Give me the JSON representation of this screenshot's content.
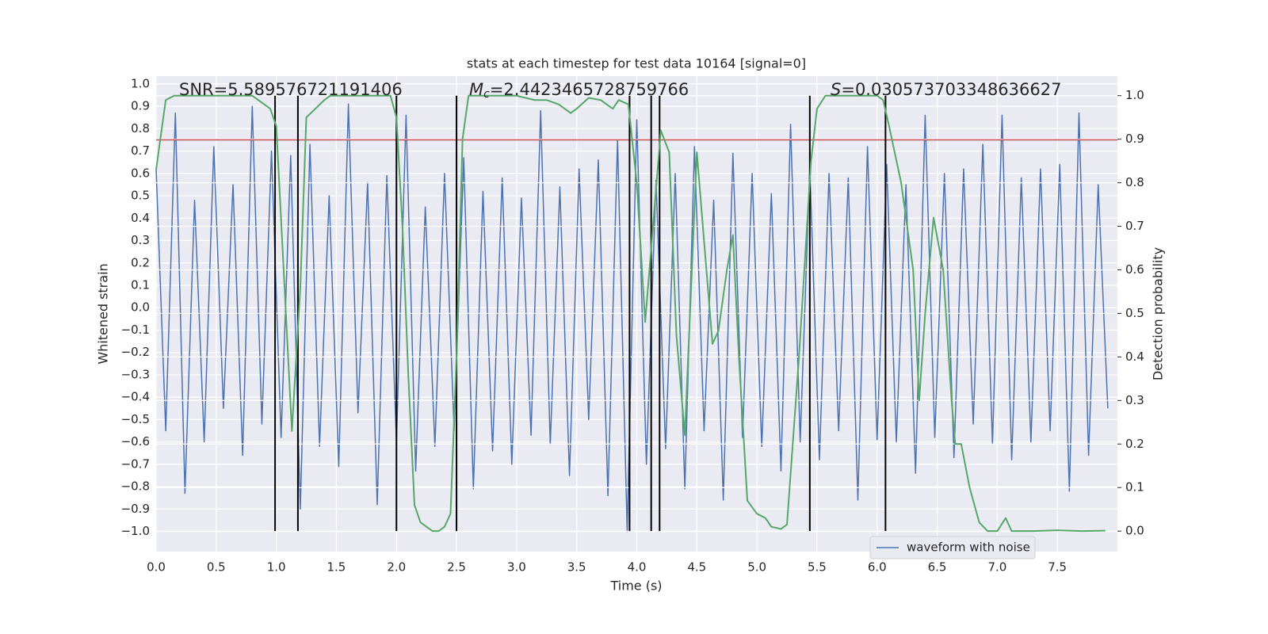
{
  "chart_data": {
    "type": "line",
    "title": "stats at each timestep for test data 10164 [signal=0]",
    "xlabel": "Time (s)",
    "ylabel": "Whitened strain",
    "y2label": "Detection probability",
    "xlim": [
      0,
      8
    ],
    "ylim": [
      -1.09,
      1.035
    ],
    "y2lim": [
      -0.047,
      1.045
    ],
    "xticks": [
      {
        "value": 0,
        "label": "0.0"
      },
      {
        "value": 0.5,
        "label": "0.5"
      },
      {
        "value": 1,
        "label": "1.0"
      },
      {
        "value": 1.5,
        "label": "1.5"
      },
      {
        "value": 2,
        "label": "2.0"
      },
      {
        "value": 2.5,
        "label": "2.5"
      },
      {
        "value": 3,
        "label": "3.0"
      },
      {
        "value": 3.5,
        "label": "3.5"
      },
      {
        "value": 4,
        "label": "4.0"
      },
      {
        "value": 4.5,
        "label": "4.5"
      },
      {
        "value": 5,
        "label": "5.0"
      },
      {
        "value": 5.5,
        "label": "5.5"
      },
      {
        "value": 6,
        "label": "6.0"
      },
      {
        "value": 6.5,
        "label": "6.5"
      },
      {
        "value": 7,
        "label": "7.0"
      },
      {
        "value": 7.5,
        "label": "7.5"
      }
    ],
    "yticks": [
      {
        "value": -1,
        "label": "−1.0"
      },
      {
        "value": -0.9,
        "label": "−0.9"
      },
      {
        "value": -0.8,
        "label": "−0.8"
      },
      {
        "value": -0.7,
        "label": "−0.7"
      },
      {
        "value": -0.6,
        "label": "−0.6"
      },
      {
        "value": -0.5,
        "label": "−0.5"
      },
      {
        "value": -0.4,
        "label": "−0.4"
      },
      {
        "value": -0.3,
        "label": "−0.3"
      },
      {
        "value": -0.2,
        "label": "−0.2"
      },
      {
        "value": -0.1,
        "label": "−0.1"
      },
      {
        "value": 0,
        "label": "0.0"
      },
      {
        "value": 0.1,
        "label": "0.1"
      },
      {
        "value": 0.2,
        "label": "0.2"
      },
      {
        "value": 0.3,
        "label": "0.3"
      },
      {
        "value": 0.4,
        "label": "0.4"
      },
      {
        "value": 0.5,
        "label": "0.5"
      },
      {
        "value": 0.6,
        "label": "0.6"
      },
      {
        "value": 0.7,
        "label": "0.7"
      },
      {
        "value": 0.8,
        "label": "0.8"
      },
      {
        "value": 0.9,
        "label": "0.9"
      },
      {
        "value": 1,
        "label": "1.0"
      }
    ],
    "y2ticks": [
      {
        "value": 0,
        "label": "0.0"
      },
      0.1,
      0.2,
      0.3,
      0.4,
      0.5,
      0.6,
      0.7,
      0.8,
      0.9,
      {
        "value": 1,
        "label": "1.0"
      }
    ],
    "grid": true,
    "legend": "lower right",
    "series": [
      {
        "name": "waveform with noise",
        "color": "#4c72b0",
        "x": [
          0,
          0.08,
          0.16,
          0.24,
          0.32,
          0.4,
          0.48,
          0.56,
          0.64,
          0.72,
          0.8,
          0.88,
          0.96,
          1.04,
          1.12,
          1.2,
          1.28,
          1.36,
          1.44,
          1.52,
          1.6,
          1.68,
          1.76,
          1.84,
          1.92,
          2,
          2.08,
          2.16,
          2.24,
          2.32,
          2.4,
          2.48,
          2.56,
          2.64,
          2.72,
          2.8,
          2.88,
          2.96,
          3.04,
          3.12,
          3.2,
          3.28,
          3.36,
          3.44,
          3.52,
          3.6,
          3.68,
          3.76,
          3.84,
          3.92,
          4,
          4.08,
          4.16,
          4.24,
          4.32,
          4.4,
          4.48,
          4.56,
          4.64,
          4.72,
          4.8,
          4.88,
          4.96,
          5.04,
          5.12,
          5.2,
          5.28,
          5.36,
          5.44,
          5.52,
          5.6,
          5.68,
          5.76,
          5.84,
          5.92,
          6,
          6.08,
          6.16,
          6.24,
          6.32,
          6.4,
          6.48,
          6.56,
          6.64,
          6.72,
          6.8,
          6.88,
          6.96,
          7.04,
          7.12,
          7.2,
          7.28,
          7.36,
          7.44,
          7.52,
          7.6,
          7.68,
          7.76,
          7.84,
          7.92
        ],
        "values": [
          0.62,
          -0.55,
          0.87,
          -0.83,
          0.48,
          -0.6,
          0.72,
          -0.45,
          0.55,
          -0.66,
          0.9,
          -0.52,
          0.7,
          -0.58,
          0.68,
          -0.9,
          0.73,
          -0.62,
          0.5,
          -0.71,
          0.91,
          -0.47,
          0.56,
          -0.88,
          0.59,
          -0.6,
          0.86,
          -0.73,
          0.45,
          -0.62,
          0.6,
          -0.55,
          0.67,
          -0.81,
          0.52,
          -0.64,
          0.58,
          -0.7,
          0.49,
          -0.57,
          0.88,
          -0.61,
          0.54,
          -0.75,
          0.62,
          -0.5,
          0.66,
          -0.84,
          0.75,
          -1.0,
          0.84,
          -0.7,
          0.57,
          -0.63,
          0.6,
          -0.81,
          0.72,
          -0.55,
          0.48,
          -0.86,
          0.69,
          -0.58,
          0.6,
          -0.62,
          0.51,
          -0.73,
          0.82,
          -0.6,
          0.63,
          -0.68,
          0.6,
          -0.55,
          0.58,
          -0.86,
          0.72,
          -0.59,
          0.64,
          -0.6,
          0.55,
          -0.74,
          0.86,
          -0.58,
          0.6,
          -0.67,
          0.62,
          -0.52,
          0.73,
          -0.61,
          0.86,
          -0.68,
          0.58,
          -0.6,
          0.62,
          -0.55,
          0.64,
          -0.82,
          0.87,
          -0.66,
          0.55,
          -0.45
        ]
      },
      {
        "color": "#55a868",
        "axis": "y2",
        "x": [
          0,
          0.08,
          0.15,
          0.8,
          0.9,
          0.95,
          1.0,
          1.13,
          1.2,
          1.25,
          1.4,
          1.45,
          1.95,
          2.0,
          2.05,
          2.1,
          2.15,
          2.2,
          2.3,
          2.35,
          2.4,
          2.45,
          2.5,
          2.55,
          2.6,
          3.0,
          3.15,
          3.25,
          3.35,
          3.45,
          3.5,
          3.6,
          3.7,
          3.8,
          3.85,
          3.93,
          4.0,
          4.07,
          4.12,
          4.2,
          4.27,
          4.33,
          4.4,
          4.5,
          4.55,
          4.63,
          4.68,
          4.75,
          4.8,
          4.85,
          4.92,
          5.0,
          5.07,
          5.12,
          5.2,
          5.25,
          5.35,
          5.45,
          5.5,
          5.57,
          6.0,
          6.05,
          6.1,
          6.2,
          6.3,
          6.35,
          6.4,
          6.47,
          6.55,
          6.62,
          6.65,
          6.7,
          6.77,
          6.85,
          6.92,
          7.0,
          7.07,
          7.12,
          7.3,
          7.5,
          7.7,
          7.9
        ],
        "values": [
          0.83,
          0.99,
          1.0,
          1.0,
          0.98,
          0.97,
          0.93,
          0.23,
          0.56,
          0.95,
          0.99,
          1.0,
          1.0,
          0.95,
          0.7,
          0.35,
          0.06,
          0.02,
          0.0,
          0.0,
          0.01,
          0.04,
          0.4,
          0.9,
          1.0,
          1.0,
          0.99,
          0.99,
          0.98,
          0.96,
          0.97,
          0.995,
          0.99,
          0.97,
          0.99,
          0.98,
          0.8,
          0.48,
          0.65,
          0.92,
          0.87,
          0.45,
          0.22,
          0.87,
          0.7,
          0.43,
          0.46,
          0.6,
          0.68,
          0.4,
          0.07,
          0.04,
          0.03,
          0.01,
          0.005,
          0.015,
          0.4,
          0.85,
          0.97,
          1.0,
          1.0,
          0.99,
          0.93,
          0.8,
          0.6,
          0.3,
          0.5,
          0.72,
          0.6,
          0.3,
          0.2,
          0.2,
          0.1,
          0.02,
          0.0,
          0.0,
          0.03,
          0.0,
          0.0,
          0.002,
          0.0,
          0.001
        ]
      }
    ],
    "hlines": [
      {
        "y": 0.75,
        "color": "#c44e52"
      }
    ],
    "vlines": {
      "x": [
        0.99,
        1.18,
        2.0,
        2.5,
        3.94,
        4.12,
        4.19,
        5.44,
        6.07
      ],
      "y2": [
        0,
        1
      ],
      "color": "#000000"
    },
    "annotations": [
      {
        "text": "SNR=5.589576721191406"
      },
      {
        "parts": [
          "M",
          "c",
          "=2.4423465728759766"
        ]
      },
      {
        "parts": [
          "S",
          "=0.030573703348636627"
        ]
      }
    ]
  }
}
